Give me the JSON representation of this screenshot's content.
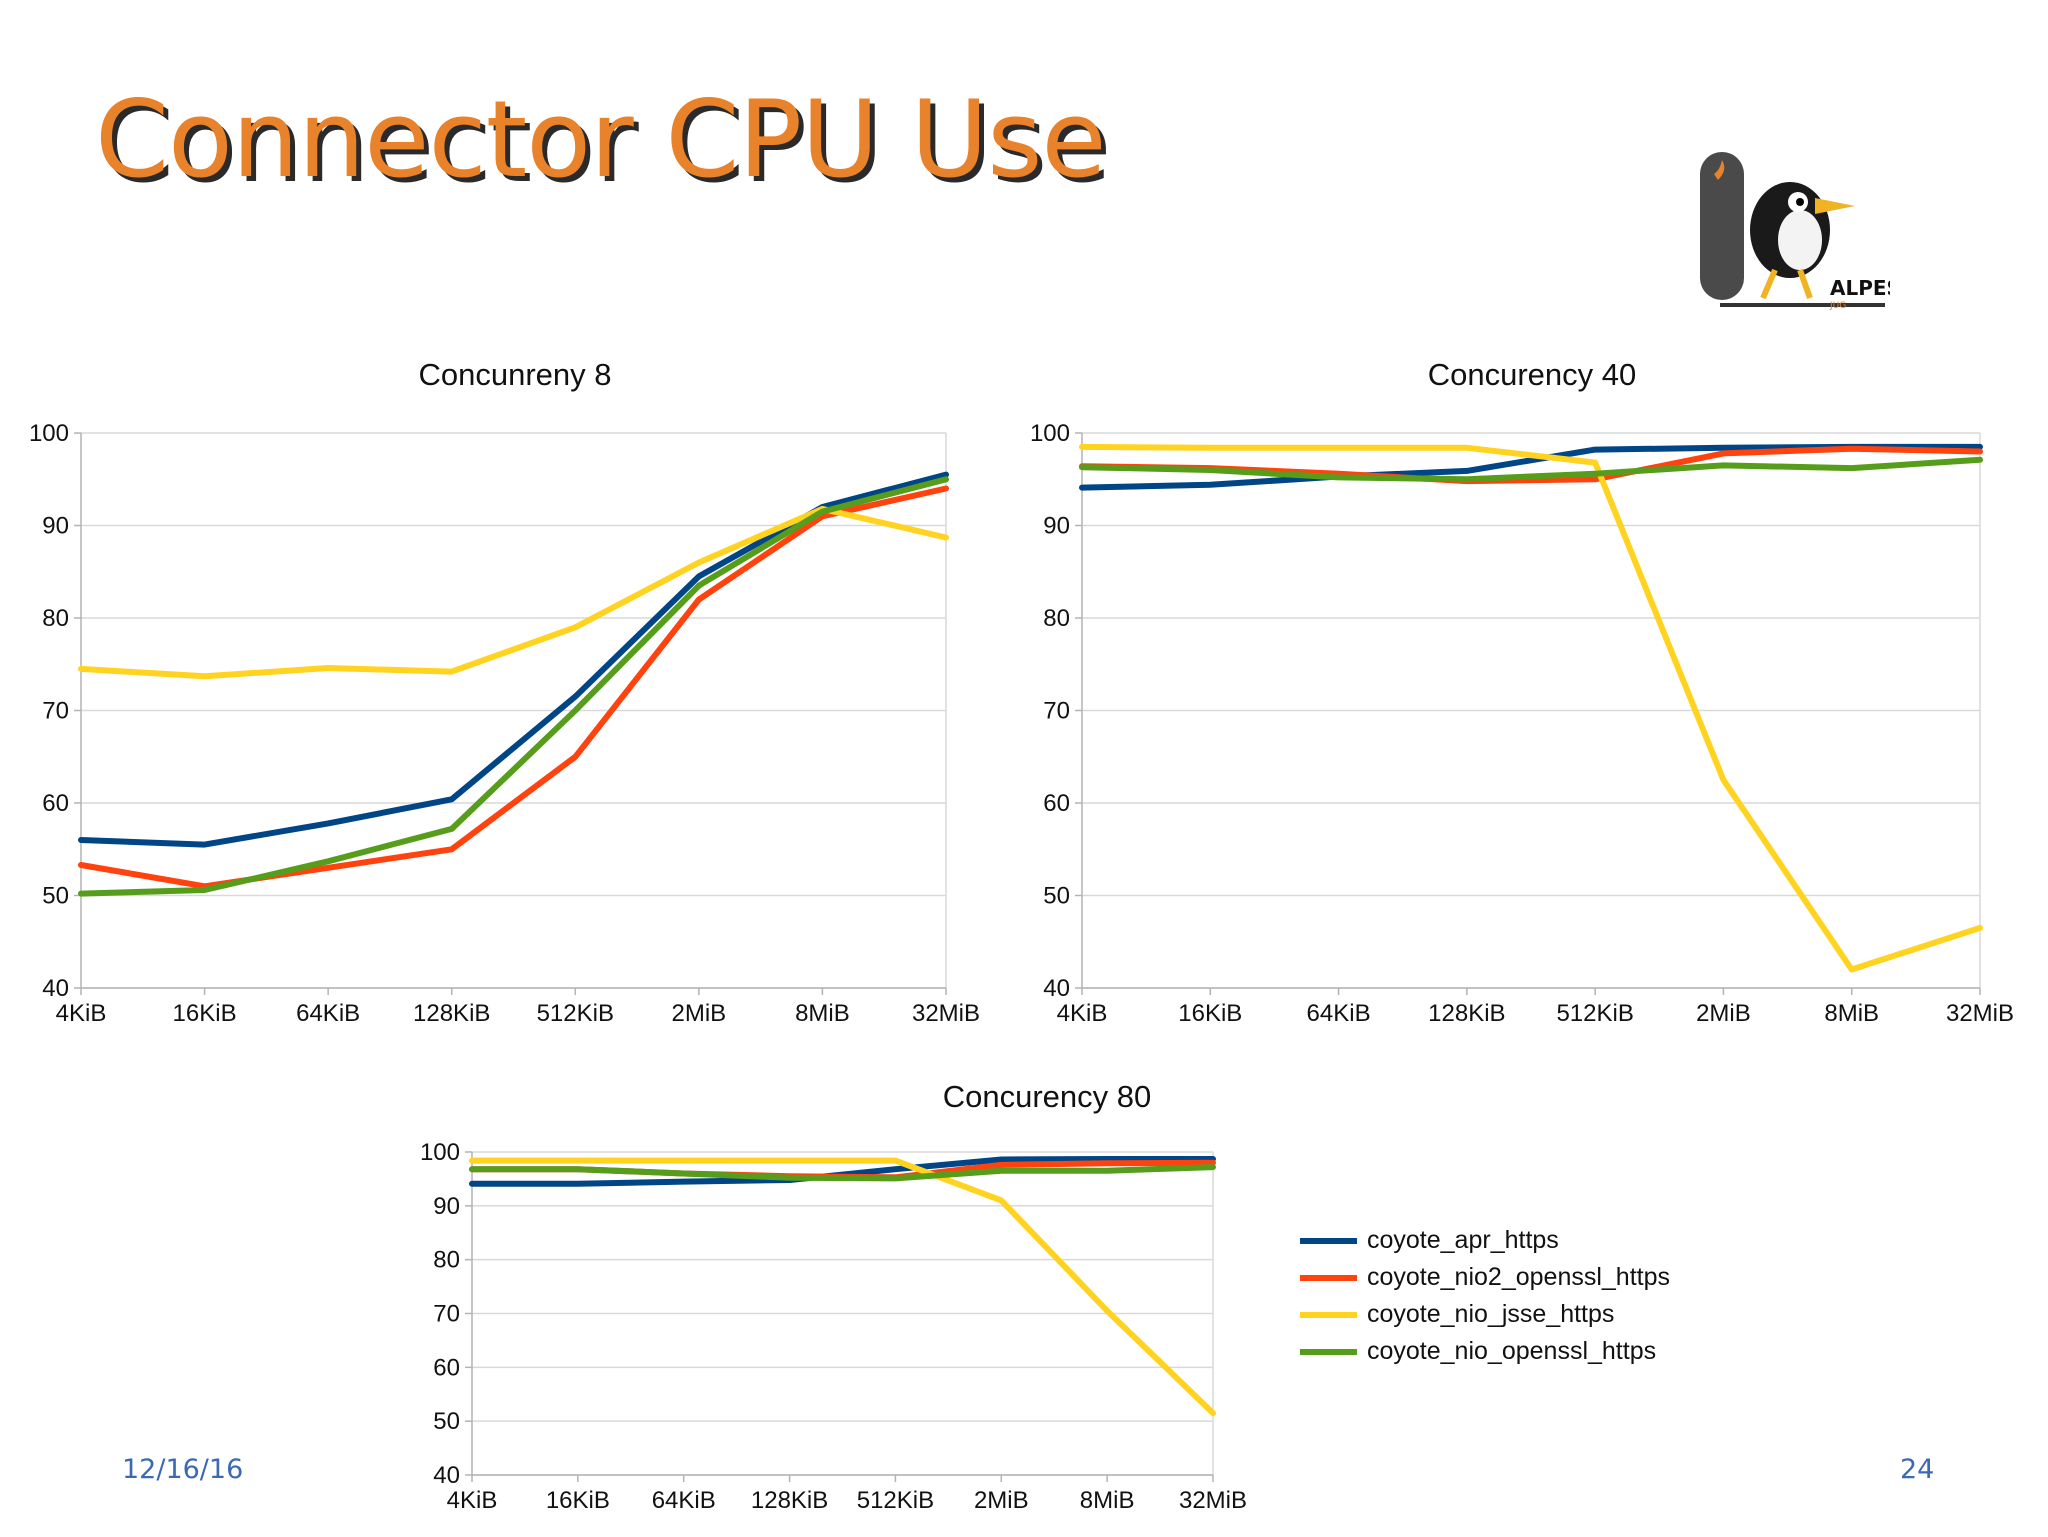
{
  "slide": {
    "title": "Connector CPU Use",
    "date": "12/16/16",
    "page_number": "24"
  },
  "logo": {
    "name": "alpes-jug-logo",
    "text": "ALPES",
    "subtext": "JUG"
  },
  "legend": [
    {
      "label": "coyote_apr_https",
      "color": "#004586"
    },
    {
      "label": "coyote_nio2_openssl_https",
      "color": "#ff420e"
    },
    {
      "label": "coyote_nio_jsse_https",
      "color": "#ffd320"
    },
    {
      "label": "coyote_nio_openssl_https",
      "color": "#579d1c"
    }
  ],
  "chart_data": [
    {
      "type": "line",
      "title": "Concunreny 8",
      "categories": [
        "4KiB",
        "16KiB",
        "64KiB",
        "128KiB",
        "512KiB",
        "2MiB",
        "8MiB",
        "32MiB"
      ],
      "ylim": [
        40,
        100
      ],
      "yticks": [
        "40",
        "50",
        "60",
        "70",
        "80",
        "90",
        "100"
      ],
      "series": [
        {
          "name": "coyote_apr_https",
          "color": "#004586",
          "values": [
            56,
            55.5,
            57.8,
            60.4,
            71.5,
            84.5,
            92,
            95.5
          ]
        },
        {
          "name": "coyote_nio2_openssl_https",
          "color": "#ff420e",
          "values": [
            53.3,
            51,
            53,
            55,
            65,
            82,
            91,
            94
          ]
        },
        {
          "name": "coyote_nio_jsse_https",
          "color": "#ffd320",
          "values": [
            74.5,
            73.7,
            74.6,
            74.2,
            79,
            86,
            91.8,
            88.7
          ]
        },
        {
          "name": "coyote_nio_openssl_https",
          "color": "#579d1c",
          "values": [
            50.2,
            50.6,
            53.7,
            57.2,
            70,
            83.5,
            91.5,
            95
          ]
        }
      ]
    },
    {
      "type": "line",
      "title": "Concurency 40",
      "categories": [
        "4KiB",
        "16KiB",
        "64KiB",
        "128KiB",
        "512KiB",
        "2MiB",
        "8MiB",
        "32MiB"
      ],
      "ylim": [
        40,
        100
      ],
      "yticks": [
        "40",
        "50",
        "60",
        "70",
        "80",
        "90",
        "100"
      ],
      "series": [
        {
          "name": "coyote_apr_https",
          "color": "#004586",
          "values": [
            94.1,
            94.4,
            95.3,
            95.9,
            98.2,
            98.4,
            98.5,
            98.5
          ]
        },
        {
          "name": "coyote_nio2_openssl_https",
          "color": "#ff420e",
          "values": [
            96.4,
            96.2,
            95.6,
            94.8,
            95,
            97.8,
            98.3,
            98
          ]
        },
        {
          "name": "coyote_nio_jsse_https",
          "color": "#ffd320",
          "values": [
            98.5,
            98.4,
            98.4,
            98.4,
            96.8,
            62.5,
            42,
            46.5
          ]
        },
        {
          "name": "coyote_nio_openssl_https",
          "color": "#579d1c",
          "values": [
            96.3,
            96,
            95.2,
            95,
            95.6,
            96.5,
            96.2,
            97.1
          ]
        }
      ]
    },
    {
      "type": "line",
      "title": "Concurency 80",
      "categories": [
        "4KiB",
        "16KiB",
        "64KiB",
        "128KiB",
        "512KiB",
        "2MiB",
        "8MiB",
        "32MiB"
      ],
      "ylim": [
        40,
        100
      ],
      "yticks": [
        "40",
        "50",
        "60",
        "70",
        "80",
        "90",
        "100"
      ],
      "series": [
        {
          "name": "coyote_apr_https",
          "color": "#004586",
          "values": [
            94.1,
            94.1,
            94.5,
            94.8,
            96.8,
            98.6,
            98.7,
            98.7
          ]
        },
        {
          "name": "coyote_nio2_openssl_https",
          "color": "#ff420e",
          "values": [
            96.8,
            96.8,
            96,
            95.5,
            95.3,
            97.6,
            97.9,
            98
          ]
        },
        {
          "name": "coyote_nio_jsse_https",
          "color": "#ffd320",
          "values": [
            98.4,
            98.4,
            98.4,
            98.4,
            98.4,
            91,
            70.5,
            51.5
          ]
        },
        {
          "name": "coyote_nio_openssl_https",
          "color": "#579d1c",
          "values": [
            96.8,
            96.8,
            96,
            95.2,
            95.1,
            96.5,
            96.5,
            97.2
          ]
        }
      ]
    }
  ]
}
